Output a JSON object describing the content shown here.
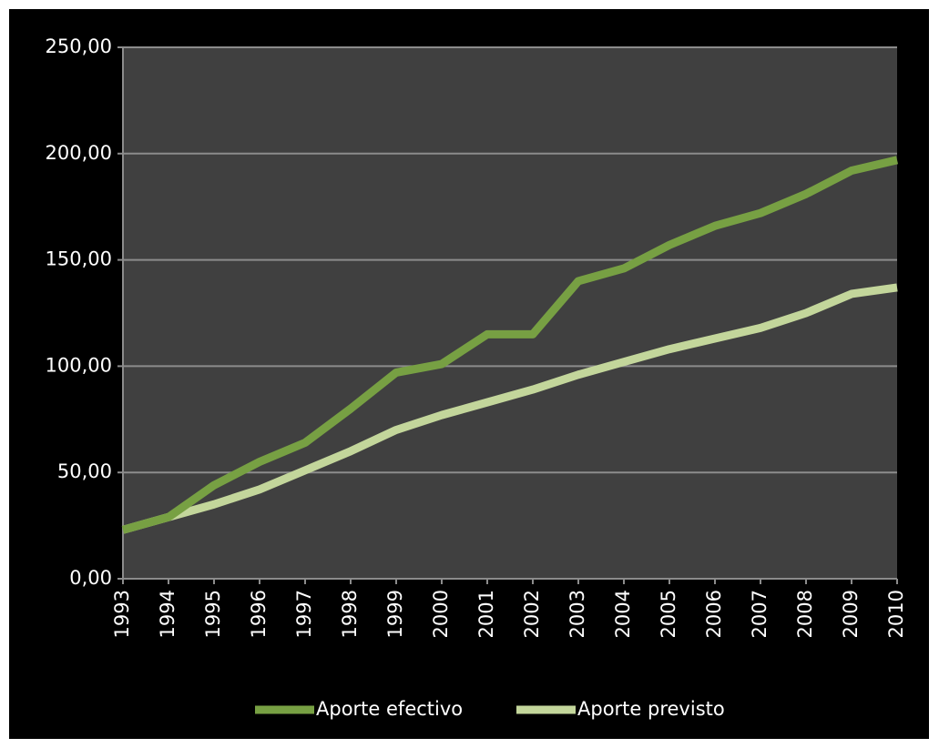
{
  "chart_data": {
    "type": "line",
    "categories": [
      "1993",
      "1994",
      "1995",
      "1996",
      "1997",
      "1998",
      "1999",
      "2000",
      "2001",
      "2002",
      "2003",
      "2004",
      "2005",
      "2006",
      "2007",
      "2008",
      "2009",
      "2010"
    ],
    "series": [
      {
        "name": "Aporte efectivo",
        "color": "#77a043",
        "values": [
          23,
          29,
          44,
          55,
          64,
          80,
          97,
          101,
          115,
          115,
          140,
          146,
          157,
          166,
          172,
          181,
          192,
          197
        ]
      },
      {
        "name": "Aporte previsto",
        "color": "#c3d69b",
        "values": [
          23,
          29,
          35,
          42,
          51,
          60,
          70,
          77,
          83,
          89,
          96,
          102,
          108,
          113,
          118,
          125,
          134,
          137
        ]
      }
    ],
    "ylim": [
      0,
      250
    ],
    "yticks": [
      {
        "value": 0,
        "label": "0,00"
      },
      {
        "value": 50,
        "label": "50,00"
      },
      {
        "value": 100,
        "label": "100,00"
      },
      {
        "value": 150,
        "label": "150,00"
      },
      {
        "value": 200,
        "label": "200,00"
      },
      {
        "value": 250,
        "label": "250,00"
      }
    ],
    "grid": true,
    "legend": "bottom"
  }
}
